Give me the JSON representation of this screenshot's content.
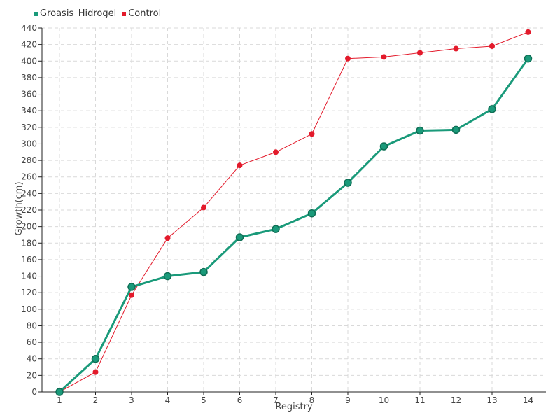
{
  "chart_data": {
    "type": "line",
    "title": "",
    "xlabel": "Registry",
    "ylabel": "Growth(cm)",
    "categories": [
      "1",
      "2",
      "3",
      "4",
      "5",
      "6",
      "7",
      "8",
      "9",
      "10",
      "11",
      "12",
      "13",
      "14"
    ],
    "ylim": [
      0,
      440
    ],
    "yticks": [
      0,
      20,
      40,
      60,
      80,
      100,
      120,
      140,
      160,
      180,
      200,
      220,
      240,
      260,
      280,
      300,
      320,
      340,
      360,
      380,
      400,
      420,
      440
    ],
    "grid": true,
    "legend_position": "top-left",
    "series": [
      {
        "name": "Groasis_Hidrogel",
        "color": "#1a9a7a",
        "values": [
          0,
          40,
          127,
          140,
          145,
          187,
          197,
          216,
          253,
          297,
          316,
          317,
          342,
          403
        ]
      },
      {
        "name": "Control",
        "color": "#e31a2b",
        "values": [
          0,
          24,
          117,
          186,
          223,
          274,
          290,
          312,
          403,
          405,
          410,
          415,
          418,
          435
        ]
      }
    ]
  }
}
